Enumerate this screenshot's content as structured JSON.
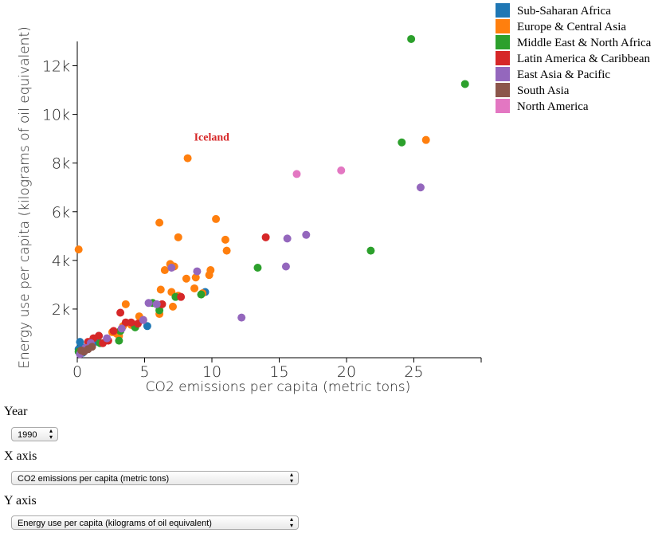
{
  "chart_data": {
    "type": "scatter",
    "xlabel": "CO2 emissions per capita (metric tons)",
    "ylabel": "Energy use per capita (kilograms of oil equivalent)",
    "xlim": [
      0,
      30
    ],
    "ylim": [
      0,
      13000
    ],
    "xticks": [
      0,
      5,
      10,
      15,
      20,
      25
    ],
    "xtick_labels": [
      "0",
      "5",
      "10",
      "15",
      "20",
      "25"
    ],
    "yticks": [
      2000,
      4000,
      6000,
      8000,
      10000,
      12000
    ],
    "ytick_labels": [
      "2k",
      "4k",
      "6k",
      "8k",
      "10k",
      "12k"
    ],
    "annotation": {
      "text": "Iceland",
      "x": 8.2,
      "y": 8200,
      "color": "#d62728"
    },
    "series": [
      {
        "name": "Sub-Saharan Africa",
        "color": "#1f77b4",
        "points": [
          [
            0.1,
            350
          ],
          [
            0.3,
            450
          ],
          [
            0.2,
            650
          ],
          [
            0.5,
            300
          ],
          [
            0.8,
            500
          ],
          [
            1.2,
            700
          ],
          [
            1.6,
            900
          ],
          [
            1.5,
            650
          ],
          [
            0.4,
            200
          ],
          [
            0.6,
            380
          ],
          [
            5.2,
            1300
          ],
          [
            9.5,
            2700
          ],
          [
            0.9,
            420
          ]
        ]
      },
      {
        "name": "Europe & Central Asia",
        "color": "#ff7f0e",
        "points": [
          [
            0.1,
            4450
          ],
          [
            8.2,
            8200
          ],
          [
            25.9,
            8950
          ],
          [
            6.1,
            5550
          ],
          [
            10.3,
            5700
          ],
          [
            11.0,
            4850
          ],
          [
            11.1,
            4400
          ],
          [
            7.5,
            4950
          ],
          [
            6.9,
            3850
          ],
          [
            7.2,
            3750
          ],
          [
            6.5,
            3600
          ],
          [
            8.1,
            3250
          ],
          [
            9.9,
            3600
          ],
          [
            9.8,
            3400
          ],
          [
            8.8,
            3300
          ],
          [
            8.7,
            2850
          ],
          [
            7.0,
            2700
          ],
          [
            6.2,
            2800
          ],
          [
            9.3,
            2650
          ],
          [
            7.5,
            2550
          ],
          [
            7.1,
            2100
          ],
          [
            6.1,
            1800
          ],
          [
            3.6,
            2200
          ],
          [
            4.6,
            1700
          ],
          [
            3.4,
            1300
          ],
          [
            2.9,
            1000
          ],
          [
            2.6,
            1050
          ],
          [
            3.1,
            900
          ],
          [
            4.9,
            1550
          ],
          [
            4.0,
            1350
          ]
        ]
      },
      {
        "name": "Middle East & North Africa",
        "color": "#2ca02c",
        "points": [
          [
            24.8,
            13100
          ],
          [
            28.8,
            11250
          ],
          [
            24.1,
            8850
          ],
          [
            21.8,
            4400
          ],
          [
            13.4,
            3700
          ],
          [
            9.2,
            2600
          ],
          [
            7.3,
            2500
          ],
          [
            5.6,
            2250
          ],
          [
            6.1,
            1950
          ],
          [
            3.2,
            1100
          ],
          [
            3.1,
            700
          ],
          [
            4.3,
            1250
          ],
          [
            1.7,
            600
          ],
          [
            0.1,
            250
          ],
          [
            1.0,
            500
          ]
        ]
      },
      {
        "name": "Latin America & Caribbean",
        "color": "#d62728",
        "points": [
          [
            14.0,
            4950
          ],
          [
            6.3,
            2200
          ],
          [
            7.7,
            2500
          ],
          [
            3.2,
            1850
          ],
          [
            3.6,
            1450
          ],
          [
            4.0,
            1450
          ],
          [
            4.5,
            1400
          ],
          [
            2.3,
            700
          ],
          [
            1.6,
            900
          ],
          [
            1.2,
            800
          ],
          [
            0.8,
            650
          ],
          [
            2.7,
            1100
          ],
          [
            1.9,
            600
          ]
        ]
      },
      {
        "name": "East Asia & Pacific",
        "color": "#9467bd",
        "points": [
          [
            25.5,
            7000
          ],
          [
            17.0,
            5050
          ],
          [
            15.6,
            4900
          ],
          [
            15.5,
            3750
          ],
          [
            12.2,
            1650
          ],
          [
            7.0,
            3700
          ],
          [
            8.9,
            3550
          ],
          [
            5.9,
            2200
          ],
          [
            5.3,
            2250
          ],
          [
            3.3,
            1200
          ],
          [
            4.9,
            1550
          ],
          [
            2.2,
            800
          ],
          [
            1.0,
            600
          ],
          [
            0.6,
            400
          ],
          [
            0.2,
            150
          ]
        ]
      },
      {
        "name": "South Asia",
        "color": "#8c564b",
        "points": [
          [
            0.8,
            350
          ],
          [
            0.3,
            300
          ],
          [
            1.1,
            450
          ],
          [
            0.5,
            250
          ]
        ]
      },
      {
        "name": "North America",
        "color": "#e377c2",
        "points": [
          [
            16.3,
            7550
          ],
          [
            19.6,
            7700
          ]
        ]
      }
    ],
    "legend_position": "top-right"
  },
  "controls": {
    "year_label": "Year",
    "year_value": "1990",
    "xaxis_label": "X axis",
    "xaxis_value": "CO2 emissions per capita (metric tons)",
    "yaxis_label": "Y axis",
    "yaxis_value": "Energy use per capita (kilograms of oil equivalent)"
  }
}
